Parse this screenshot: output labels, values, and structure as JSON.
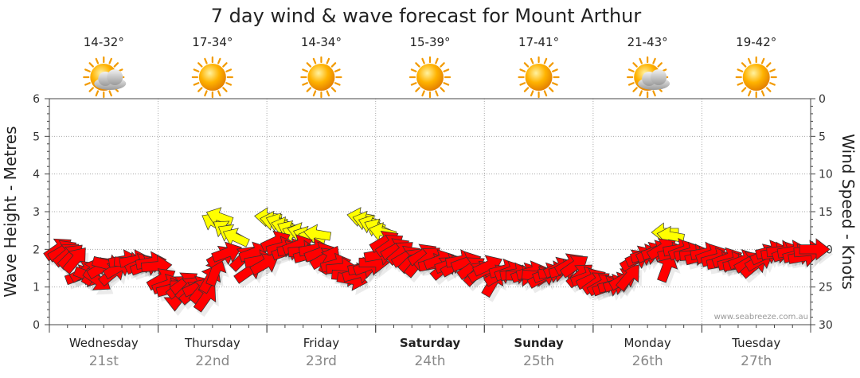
{
  "title": "7 day wind & wave forecast for Mount Arthur",
  "credit": "www.seabreeze.com.au",
  "days": [
    {
      "name": "Wednesday",
      "date": "21st",
      "temp": "14-32°",
      "icon": "partly-cloudy-icon",
      "bold": false
    },
    {
      "name": "Thursday",
      "date": "22nd",
      "temp": "17-34°",
      "icon": "sunny-icon",
      "bold": false
    },
    {
      "name": "Friday",
      "date": "23rd",
      "temp": "14-34°",
      "icon": "sunny-icon",
      "bold": false
    },
    {
      "name": "Saturday",
      "date": "24th",
      "temp": "15-39°",
      "icon": "sunny-icon",
      "bold": true
    },
    {
      "name": "Sunday",
      "date": "25th",
      "temp": "17-41°",
      "icon": "sunny-icon",
      "bold": true
    },
    {
      "name": "Monday",
      "date": "26th",
      "temp": "21-43°",
      "icon": "partly-cloudy-icon",
      "bold": false
    },
    {
      "name": "Tuesday",
      "date": "27th",
      "temp": "19-42°",
      "icon": "sunny-icon",
      "bold": false
    }
  ],
  "colors": {
    "wind_arrow": "#ff0000",
    "wave_arrow": "#ffff00",
    "grid": "#aaaaaa"
  },
  "chart_data": {
    "type": "scatter",
    "title": "7 day wind & wave forecast for Mount Arthur",
    "x_unit": "day index (0-7)",
    "left_axis": {
      "label": "Wave Height - Metres",
      "ylim": [
        0,
        6
      ],
      "ticks": [
        0,
        1,
        2,
        3,
        4,
        5,
        6
      ]
    },
    "right_axis": {
      "label": "Wind Speed - Knots",
      "ylim": [
        30,
        0
      ],
      "ticks": [
        0,
        5,
        10,
        15,
        20,
        25,
        30
      ]
    },
    "grid": true,
    "series": [
      {
        "name": "",
        "color": "#ff0000",
        "axis": "left",
        "points": [
          [
            0.0,
            2.0,
            -35
          ],
          [
            0.04,
            1.95,
            -30
          ],
          [
            0.08,
            1.85,
            -40
          ],
          [
            0.12,
            1.8,
            -45
          ],
          [
            0.16,
            1.7,
            -50
          ],
          [
            0.2,
            1.3,
            -20
          ],
          [
            0.24,
            1.4,
            -30
          ],
          [
            0.28,
            1.3,
            20
          ],
          [
            0.32,
            1.4,
            -60
          ],
          [
            0.36,
            1.2,
            35
          ],
          [
            0.4,
            1.5,
            -30
          ],
          [
            0.45,
            1.6,
            15
          ],
          [
            0.5,
            1.35,
            -40
          ],
          [
            0.55,
            1.5,
            -30
          ],
          [
            0.6,
            1.7,
            -10
          ],
          [
            0.65,
            1.65,
            5
          ],
          [
            0.7,
            1.7,
            -10
          ],
          [
            0.75,
            1.6,
            -25
          ],
          [
            0.8,
            1.55,
            -20
          ],
          [
            0.85,
            1.65,
            -10
          ],
          [
            0.9,
            1.55,
            -5
          ],
          [
            0.95,
            1.2,
            -30
          ],
          [
            1.0,
            1.05,
            -20
          ],
          [
            1.04,
            0.95,
            -15
          ],
          [
            1.08,
            0.8,
            90
          ],
          [
            1.12,
            1.0,
            -40
          ],
          [
            1.16,
            1.1,
            -35
          ],
          [
            1.2,
            0.95,
            -45
          ],
          [
            1.24,
            0.85,
            -40
          ],
          [
            1.28,
            1.0,
            -25
          ],
          [
            1.32,
            0.9,
            -50
          ],
          [
            1.36,
            0.7,
            -55
          ],
          [
            1.4,
            1.2,
            -60
          ],
          [
            1.45,
            1.4,
            -70
          ],
          [
            1.5,
            1.8,
            -30
          ],
          [
            1.55,
            1.9,
            -20
          ],
          [
            1.7,
            1.75,
            -45
          ],
          [
            1.75,
            1.4,
            -35
          ],
          [
            1.8,
            1.9,
            -20
          ],
          [
            1.85,
            1.7,
            -10
          ],
          [
            1.9,
            1.6,
            -30
          ],
          [
            2.0,
            2.2,
            -25
          ],
          [
            2.05,
            2.05,
            -15
          ],
          [
            2.1,
            1.95,
            -20
          ],
          [
            2.15,
            2.0,
            -10
          ],
          [
            2.2,
            2.1,
            -20
          ],
          [
            2.25,
            1.95,
            -5
          ],
          [
            2.3,
            1.85,
            -15
          ],
          [
            2.35,
            2.0,
            -10
          ],
          [
            2.4,
            1.9,
            -20
          ],
          [
            2.45,
            1.75,
            -30
          ],
          [
            2.5,
            1.7,
            -60
          ],
          [
            2.55,
            1.6,
            -15
          ],
          [
            2.6,
            1.5,
            -5
          ],
          [
            2.65,
            1.3,
            5
          ],
          [
            2.7,
            1.2,
            10
          ],
          [
            2.75,
            1.35,
            -15
          ],
          [
            2.8,
            1.5,
            -10
          ],
          [
            2.85,
            1.55,
            -20
          ],
          [
            2.9,
            1.65,
            0
          ],
          [
            2.95,
            1.85,
            -10
          ],
          [
            3.0,
            2.2,
            -30
          ],
          [
            3.05,
            2.1,
            -35
          ],
          [
            3.1,
            2.0,
            -30
          ],
          [
            3.15,
            1.9,
            -40
          ],
          [
            3.2,
            1.8,
            -30
          ],
          [
            3.25,
            1.7,
            -45
          ],
          [
            3.3,
            1.6,
            -50
          ],
          [
            3.35,
            1.85,
            -30
          ],
          [
            3.4,
            1.75,
            -40
          ],
          [
            3.45,
            1.6,
            -10
          ],
          [
            3.5,
            1.7,
            -20
          ],
          [
            3.55,
            1.5,
            -40
          ],
          [
            3.6,
            1.6,
            -20
          ],
          [
            3.65,
            1.55,
            -30
          ],
          [
            3.7,
            1.7,
            -10
          ],
          [
            3.75,
            1.65,
            -20
          ],
          [
            3.8,
            1.5,
            -35
          ],
          [
            3.85,
            1.35,
            -45
          ],
          [
            3.9,
            1.4,
            -30
          ],
          [
            3.95,
            1.55,
            -25
          ],
          [
            4.0,
            1.1,
            -60
          ],
          [
            4.05,
            1.3,
            -30
          ],
          [
            4.1,
            1.45,
            -15
          ],
          [
            4.15,
            1.4,
            -20
          ],
          [
            4.2,
            1.35,
            -10
          ],
          [
            4.25,
            1.3,
            0
          ],
          [
            4.3,
            1.35,
            -20
          ],
          [
            4.35,
            1.4,
            -15
          ],
          [
            4.4,
            1.3,
            5
          ],
          [
            4.45,
            1.25,
            -30
          ],
          [
            4.5,
            1.35,
            -20
          ],
          [
            4.55,
            1.4,
            -10
          ],
          [
            4.6,
            1.5,
            -25
          ],
          [
            4.65,
            1.45,
            -15
          ],
          [
            4.7,
            1.6,
            -30
          ],
          [
            4.75,
            1.55,
            -35
          ],
          [
            4.8,
            1.3,
            -40
          ],
          [
            4.85,
            1.25,
            -20
          ],
          [
            4.9,
            1.2,
            -25
          ],
          [
            4.95,
            1.1,
            -35
          ],
          [
            5.0,
            1.05,
            -30
          ],
          [
            5.05,
            1.0,
            -20
          ],
          [
            5.1,
            1.05,
            -15
          ],
          [
            5.15,
            1.1,
            -20
          ],
          [
            5.2,
            1.2,
            -30
          ],
          [
            5.25,
            1.25,
            -50
          ],
          [
            5.3,
            1.7,
            -30
          ],
          [
            5.35,
            1.8,
            -25
          ],
          [
            5.4,
            1.85,
            -15
          ],
          [
            5.45,
            1.9,
            -25
          ],
          [
            5.5,
            1.95,
            -20
          ],
          [
            5.55,
            2.0,
            -30
          ],
          [
            5.6,
            1.5,
            -70
          ],
          [
            5.65,
            1.9,
            -15
          ],
          [
            5.7,
            2.0,
            -10
          ],
          [
            5.75,
            1.95,
            -20
          ],
          [
            5.8,
            1.9,
            -15
          ],
          [
            5.85,
            1.85,
            -5
          ],
          [
            5.9,
            1.8,
            -15
          ],
          [
            5.95,
            1.9,
            -10
          ],
          [
            6.0,
            1.85,
            -20
          ],
          [
            6.05,
            1.75,
            -15
          ],
          [
            6.1,
            1.65,
            -10
          ],
          [
            6.15,
            1.75,
            -20
          ],
          [
            6.2,
            1.65,
            -15
          ],
          [
            6.25,
            1.6,
            -10
          ],
          [
            6.3,
            1.7,
            -20
          ],
          [
            6.35,
            1.65,
            -30
          ],
          [
            6.4,
            1.55,
            -40
          ],
          [
            6.45,
            1.7,
            -30
          ],
          [
            6.5,
            1.85,
            -25
          ],
          [
            6.55,
            1.95,
            -15
          ],
          [
            6.6,
            1.9,
            -10
          ],
          [
            6.65,
            1.95,
            -5
          ],
          [
            6.7,
            1.9,
            -20
          ],
          [
            6.75,
            1.95,
            -10
          ],
          [
            6.8,
            1.85,
            -15
          ],
          [
            6.85,
            1.8,
            -10
          ],
          [
            6.9,
            1.95,
            -5
          ],
          [
            6.95,
            2.0,
            0
          ]
        ]
      },
      {
        "name": "",
        "color": "#ffff00",
        "axis": "left",
        "points": [
          [
            1.45,
            2.7,
            -150
          ],
          [
            1.5,
            2.85,
            -160
          ],
          [
            1.55,
            2.5,
            -145
          ],
          [
            1.6,
            2.4,
            -150
          ],
          [
            1.65,
            2.3,
            -155
          ],
          [
            1.95,
            2.85,
            -175
          ],
          [
            2.0,
            2.75,
            -170
          ],
          [
            2.05,
            2.7,
            -160
          ],
          [
            2.1,
            2.6,
            -165
          ],
          [
            2.15,
            2.5,
            -155
          ],
          [
            2.2,
            2.4,
            -160
          ],
          [
            2.25,
            2.45,
            -165
          ],
          [
            2.3,
            2.35,
            -160
          ],
          [
            2.35,
            2.3,
            -165
          ],
          [
            2.4,
            2.4,
            -170
          ],
          [
            2.8,
            2.85,
            -170
          ],
          [
            2.85,
            2.75,
            -165
          ],
          [
            2.9,
            2.65,
            -160
          ],
          [
            2.95,
            2.55,
            -155
          ],
          [
            3.0,
            2.45,
            -165
          ],
          [
            5.6,
            2.45,
            -180
          ],
          [
            5.65,
            2.35,
            -170
          ]
        ]
      }
    ]
  }
}
